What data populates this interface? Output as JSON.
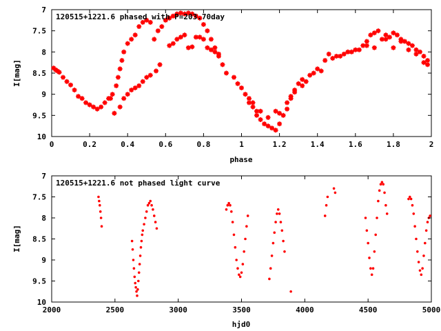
{
  "chart_data": [
    {
      "type": "scatter",
      "title": "120515+1221.6 phased with P=203.70day",
      "xlabel": "phase",
      "ylabel": "I[mag]",
      "xlim": [
        0,
        2
      ],
      "ylim": [
        10,
        7
      ],
      "y_inverted": true,
      "x_ticks": [
        "0",
        "0.2",
        "0.4",
        "0.6",
        "0.8",
        "1",
        "1.2",
        "1.4",
        "1.6",
        "1.8",
        "2"
      ],
      "y_ticks": [
        "7",
        "7.5",
        "8",
        "8.5",
        "9",
        "9.5",
        "10"
      ],
      "color": "#ff0000",
      "marker": "star",
      "grid": false,
      "series": [
        {
          "points": [
            [
              0.01,
              8.38
            ],
            [
              0.02,
              8.42
            ],
            [
              0.03,
              8.45
            ],
            [
              0.04,
              8.48
            ],
            [
              0.06,
              8.6
            ],
            [
              0.08,
              8.7
            ],
            [
              0.1,
              8.78
            ],
            [
              0.12,
              8.9
            ],
            [
              0.14,
              9.05
            ],
            [
              0.16,
              9.1
            ],
            [
              0.18,
              9.2
            ],
            [
              0.2,
              9.25
            ],
            [
              0.22,
              9.3
            ],
            [
              0.24,
              9.35
            ],
            [
              0.26,
              9.3
            ],
            [
              0.28,
              9.2
            ],
            [
              0.3,
              9.1
            ],
            [
              0.31,
              9.1
            ],
            [
              0.32,
              9.0
            ],
            [
              0.34,
              8.8
            ],
            [
              0.35,
              8.6
            ],
            [
              0.36,
              8.4
            ],
            [
              0.37,
              8.2
            ],
            [
              0.38,
              8.0
            ],
            [
              0.4,
              7.8
            ],
            [
              0.42,
              7.7
            ],
            [
              0.44,
              7.6
            ],
            [
              0.46,
              7.4
            ],
            [
              0.48,
              7.3
            ],
            [
              0.5,
              7.25
            ],
            [
              0.52,
              7.3
            ],
            [
              0.54,
              7.7
            ],
            [
              0.56,
              7.5
            ],
            [
              0.58,
              7.4
            ],
            [
              0.6,
              7.25
            ],
            [
              0.62,
              7.2
            ],
            [
              0.64,
              7.15
            ],
            [
              0.66,
              7.1
            ],
            [
              0.68,
              7.08
            ],
            [
              0.7,
              7.1
            ],
            [
              0.72,
              7.08
            ],
            [
              0.74,
              7.1
            ],
            [
              0.76,
              7.15
            ],
            [
              0.78,
              7.2
            ],
            [
              0.8,
              7.35
            ],
            [
              0.82,
              7.5
            ],
            [
              0.84,
              7.7
            ],
            [
              0.86,
              7.9
            ],
            [
              0.88,
              8.1
            ],
            [
              0.9,
              8.3
            ],
            [
              0.92,
              8.5
            ],
            [
              0.33,
              9.45
            ],
            [
              0.36,
              9.3
            ],
            [
              0.38,
              9.1
            ],
            [
              0.4,
              9.0
            ],
            [
              0.42,
              8.9
            ],
            [
              0.44,
              8.85
            ],
            [
              0.46,
              8.8
            ],
            [
              0.48,
              8.7
            ],
            [
              0.5,
              8.6
            ],
            [
              0.52,
              8.55
            ],
            [
              0.55,
              8.45
            ],
            [
              0.57,
              8.3
            ],
            [
              0.62,
              7.85
            ],
            [
              0.64,
              7.8
            ],
            [
              0.66,
              7.7
            ],
            [
              0.68,
              7.65
            ],
            [
              0.7,
              7.6
            ],
            [
              0.72,
              7.9
            ],
            [
              0.74,
              7.88
            ],
            [
              0.76,
              7.65
            ],
            [
              0.78,
              7.65
            ],
            [
              0.8,
              7.7
            ],
            [
              0.82,
              7.9
            ],
            [
              0.84,
              7.95
            ],
            [
              0.86,
              8.0
            ],
            [
              0.88,
              8.05
            ],
            [
              0.96,
              8.6
            ],
            [
              0.98,
              8.75
            ],
            [
              1.0,
              8.85
            ],
            [
              1.02,
              9.0
            ],
            [
              1.04,
              9.1
            ],
            [
              1.06,
              9.2
            ],
            [
              1.08,
              9.4
            ],
            [
              1.1,
              9.6
            ],
            [
              1.12,
              9.7
            ],
            [
              1.14,
              9.75
            ],
            [
              1.16,
              9.8
            ],
            [
              1.18,
              9.85
            ],
            [
              1.2,
              9.7
            ],
            [
              1.22,
              9.5
            ],
            [
              1.24,
              9.35
            ],
            [
              1.26,
              9.1
            ],
            [
              1.28,
              8.9
            ],
            [
              1.3,
              8.75
            ],
            [
              1.32,
              8.65
            ],
            [
              1.36,
              8.55
            ],
            [
              1.4,
              8.4
            ],
            [
              1.44,
              8.2
            ],
            [
              1.48,
              8.15
            ],
            [
              1.52,
              8.1
            ],
            [
              1.56,
              8.0
            ],
            [
              1.6,
              7.95
            ],
            [
              1.64,
              7.85
            ],
            [
              1.66,
              7.75
            ],
            [
              1.68,
              7.6
            ],
            [
              1.7,
              7.55
            ],
            [
              1.72,
              7.5
            ],
            [
              1.74,
              7.7
            ],
            [
              1.76,
              7.6
            ],
            [
              1.78,
              7.65
            ],
            [
              1.8,
              7.55
            ],
            [
              1.82,
              7.6
            ],
            [
              1.84,
              7.7
            ],
            [
              1.86,
              7.75
            ],
            [
              1.88,
              7.8
            ],
            [
              1.9,
              7.85
            ],
            [
              1.92,
              7.95
            ],
            [
              1.94,
              8.0
            ],
            [
              1.96,
              8.1
            ],
            [
              1.98,
              8.2
            ],
            [
              1.04,
              9.2
            ],
            [
              1.06,
              9.3
            ],
            [
              1.08,
              9.5
            ],
            [
              1.1,
              9.4
            ],
            [
              1.14,
              9.55
            ],
            [
              1.18,
              9.4
            ],
            [
              1.2,
              9.45
            ],
            [
              1.24,
              9.2
            ],
            [
              1.26,
              9.05
            ],
            [
              1.28,
              8.95
            ],
            [
              1.32,
              8.8
            ],
            [
              1.34,
              8.7
            ],
            [
              1.38,
              8.5
            ],
            [
              1.42,
              8.45
            ],
            [
              1.46,
              8.05
            ],
            [
              1.5,
              8.1
            ],
            [
              1.54,
              8.05
            ],
            [
              1.58,
              8.0
            ],
            [
              1.62,
              7.95
            ],
            [
              1.66,
              7.85
            ],
            [
              1.7,
              7.9
            ],
            [
              1.76,
              7.7
            ],
            [
              1.8,
              7.9
            ],
            [
              1.84,
              7.75
            ],
            [
              1.88,
              7.95
            ],
            [
              1.92,
              8.05
            ],
            [
              1.96,
              8.25
            ],
            [
              1.98,
              8.3
            ]
          ]
        }
      ]
    },
    {
      "type": "scatter",
      "title": "120515+1221.6 not phased light curve",
      "xlabel": "hjd0",
      "ylabel": "I[mag]",
      "xlim": [
        2000,
        5000
      ],
      "ylim": [
        10,
        7
      ],
      "y_inverted": true,
      "x_ticks": [
        "2000",
        "2500",
        "3000",
        "3500",
        "4000",
        "4500",
        "5000"
      ],
      "y_ticks": [
        "7",
        "7.5",
        "8",
        "8.5",
        "9",
        "9.5",
        "10"
      ],
      "color": "#ff0000",
      "marker": "dot",
      "grid": false,
      "series": [
        {
          "points": [
            [
              2370,
              7.5
            ],
            [
              2375,
              7.6
            ],
            [
              2380,
              7.7
            ],
            [
              2385,
              7.85
            ],
            [
              2390,
              8.0
            ],
            [
              2395,
              8.2
            ],
            [
              2635,
              8.55
            ],
            [
              2640,
              8.75
            ],
            [
              2645,
              9.0
            ],
            [
              2650,
              9.2
            ],
            [
              2655,
              9.4
            ],
            [
              2660,
              9.55
            ],
            [
              2665,
              9.65
            ],
            [
              2670,
              9.75
            ],
            [
              2675,
              9.85
            ],
            [
              2680,
              9.7
            ],
            [
              2685,
              9.5
            ],
            [
              2690,
              9.3
            ],
            [
              2695,
              9.1
            ],
            [
              2700,
              8.9
            ],
            [
              2705,
              8.7
            ],
            [
              2710,
              8.55
            ],
            [
              2715,
              8.4
            ],
            [
              2720,
              8.3
            ],
            [
              2730,
              8.15
            ],
            [
              2740,
              8.0
            ],
            [
              2750,
              7.85
            ],
            [
              2760,
              7.7
            ],
            [
              2770,
              7.65
            ],
            [
              2780,
              7.6
            ],
            [
              2790,
              7.7
            ],
            [
              2800,
              7.8
            ],
            [
              2810,
              7.95
            ],
            [
              2820,
              8.1
            ],
            [
              2830,
              8.25
            ],
            [
              3380,
              7.8
            ],
            [
              3390,
              7.7
            ],
            [
              3400,
              7.65
            ],
            [
              3410,
              7.7
            ],
            [
              3420,
              7.85
            ],
            [
              3430,
              8.1
            ],
            [
              3440,
              8.4
            ],
            [
              3450,
              8.7
            ],
            [
              3460,
              9.0
            ],
            [
              3470,
              9.2
            ],
            [
              3480,
              9.35
            ],
            [
              3490,
              9.4
            ],
            [
              3500,
              9.3
            ],
            [
              3510,
              9.1
            ],
            [
              3520,
              8.8
            ],
            [
              3530,
              8.5
            ],
            [
              3540,
              8.2
            ],
            [
              3550,
              7.95
            ],
            [
              3720,
              9.45
            ],
            [
              3730,
              9.2
            ],
            [
              3740,
              8.9
            ],
            [
              3750,
              8.6
            ],
            [
              3760,
              8.35
            ],
            [
              3770,
              8.1
            ],
            [
              3780,
              7.9
            ],
            [
              3790,
              7.8
            ],
            [
              3800,
              7.9
            ],
            [
              3810,
              8.1
            ],
            [
              3820,
              8.3
            ],
            [
              3830,
              8.55
            ],
            [
              3840,
              8.8
            ],
            [
              3890,
              9.75
            ],
            [
              4160,
              7.95
            ],
            [
              4170,
              7.7
            ],
            [
              4180,
              7.5
            ],
            [
              4230,
              7.3
            ],
            [
              4240,
              7.4
            ],
            [
              4480,
              8.0
            ],
            [
              4490,
              8.3
            ],
            [
              4500,
              8.6
            ],
            [
              4510,
              8.95
            ],
            [
              4520,
              9.2
            ],
            [
              4530,
              9.35
            ],
            [
              4540,
              9.2
            ],
            [
              4550,
              8.8
            ],
            [
              4560,
              8.4
            ],
            [
              4570,
              8.0
            ],
            [
              4580,
              7.6
            ],
            [
              4590,
              7.35
            ],
            [
              4600,
              7.2
            ],
            [
              4610,
              7.15
            ],
            [
              4620,
              7.2
            ],
            [
              4630,
              7.4
            ],
            [
              4640,
              7.7
            ],
            [
              4650,
              7.9
            ],
            [
              4820,
              7.55
            ],
            [
              4830,
              7.5
            ],
            [
              4840,
              7.55
            ],
            [
              4850,
              7.7
            ],
            [
              4860,
              7.9
            ],
            [
              4870,
              8.2
            ],
            [
              4880,
              8.5
            ],
            [
              4890,
              8.8
            ],
            [
              4900,
              9.05
            ],
            [
              4910,
              9.25
            ],
            [
              4920,
              9.35
            ],
            [
              4930,
              9.2
            ],
            [
              4940,
              8.9
            ],
            [
              4950,
              8.6
            ],
            [
              4960,
              8.3
            ],
            [
              4970,
              8.1
            ],
            [
              4980,
              8.0
            ],
            [
              4990,
              7.95
            ]
          ]
        }
      ]
    }
  ]
}
